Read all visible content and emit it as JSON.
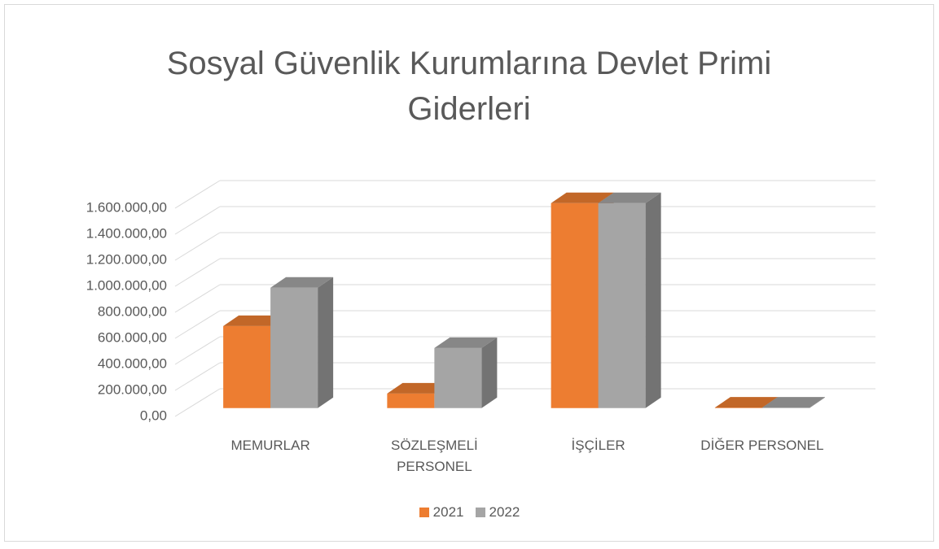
{
  "chart_data": {
    "type": "bar3d",
    "title": "Sosyal Güvenlik Kurumlarına Devlet Primi Giderleri",
    "categories": [
      "MEMURLAR",
      "SÖZLEŞMELİ PERSONEL",
      "İŞÇİLER",
      "DİĞER PERSONEL"
    ],
    "series": [
      {
        "name": "2021",
        "color": "#ed7d31",
        "values": [
          631000,
          112000,
          1575000,
          4000
        ]
      },
      {
        "name": "2022",
        "color": "#a5a5a5",
        "values": [
          925000,
          462000,
          1575000,
          4000
        ]
      }
    ],
    "ylim": [
      0,
      1600000
    ],
    "yticks": [
      {
        "value": 0,
        "label": "0,00"
      },
      {
        "value": 200000,
        "label": "200.000,00"
      },
      {
        "value": 400000,
        "label": "400.000,00"
      },
      {
        "value": 600000,
        "label": "600.000,00"
      },
      {
        "value": 800000,
        "label": "800.000,00"
      },
      {
        "value": 1000000,
        "label": "1.000.000,00"
      },
      {
        "value": 1200000,
        "label": "1.200.000,00"
      },
      {
        "value": 1400000,
        "label": "1.400.000,00"
      },
      {
        "value": 1600000,
        "label": "1.600.000,00"
      }
    ],
    "grid": true,
    "legend": "bottom"
  }
}
